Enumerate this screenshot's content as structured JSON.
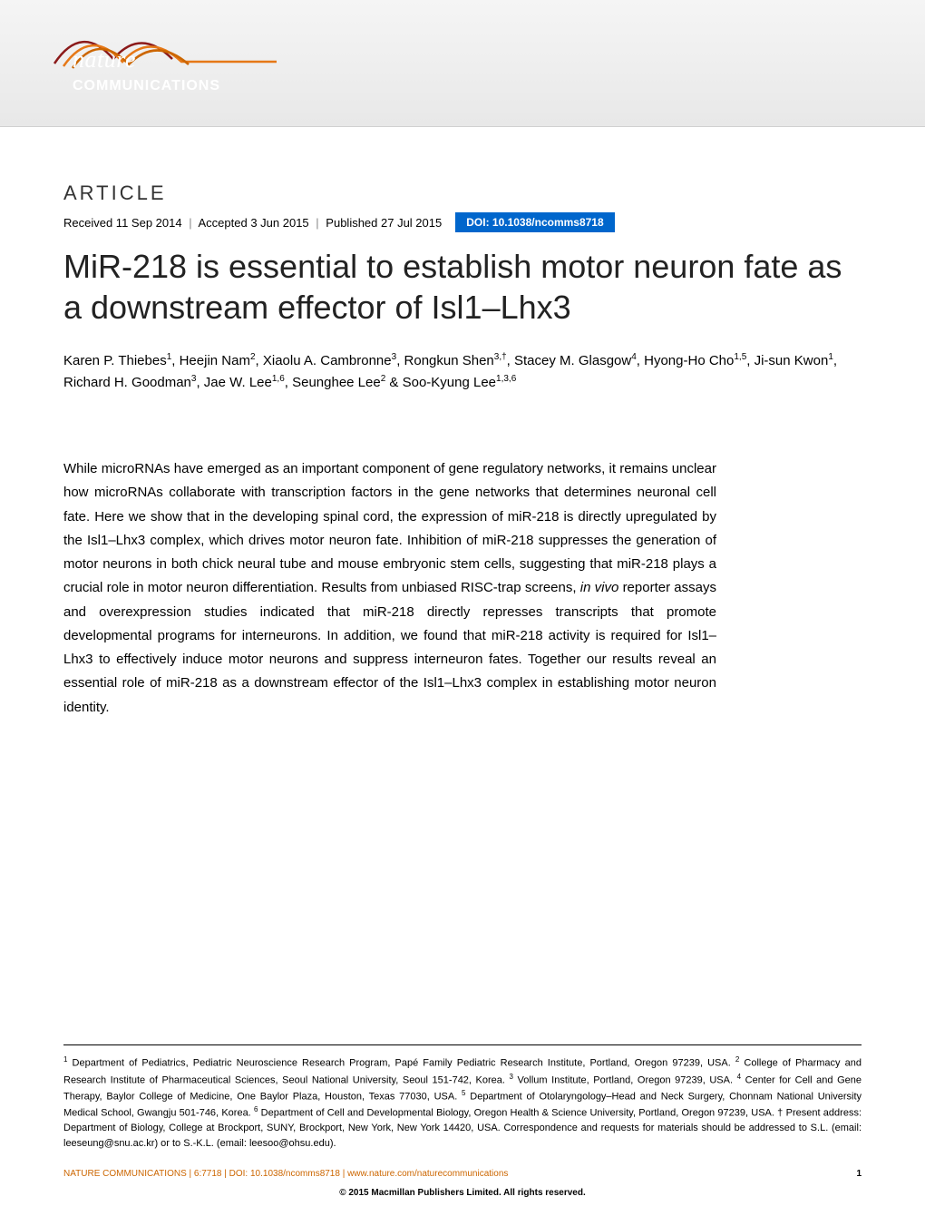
{
  "journal": {
    "logo_line1": "nature",
    "logo_line2": "COMMUNICATIONS",
    "logo_colors": {
      "swoosh1": "#8b1a1a",
      "swoosh2": "#e67817",
      "swoosh3": "#cc6600",
      "text": "#ffffff"
    },
    "banner_gradient": [
      "#f5f5f5",
      "#e8e8e8"
    ]
  },
  "article": {
    "label": "ARTICLE",
    "received": "Received 11 Sep 2014",
    "accepted": "Accepted 3 Jun 2015",
    "published": "Published 27 Jul 2015",
    "doi_label": "DOI: 10.1038/ncomms8718",
    "doi_bg": "#0066cc",
    "title": "MiR-218 is essential to establish motor neuron fate as a downstream effector of Isl1–Lhx3",
    "title_fontsize": 36,
    "authors_html": "Karen P. Thiebes<sup>1</sup>, Heejin Nam<sup>2</sup>, Xiaolu A. Cambronne<sup>3</sup>, Rongkun Shen<sup>3,†</sup>, Stacey M. Glasgow<sup>4</sup>, Hyong-Ho Cho<sup>1,5</sup>, Ji-sun Kwon<sup>1</sup>, Richard H. Goodman<sup>3</sup>, Jae W. Lee<sup>1,6</sup>, Seunghee Lee<sup>2</sup> & Soo-Kyung Lee<sup>1,3,6</sup>",
    "abstract": "While microRNAs have emerged as an important component of gene regulatory networks, it remains unclear how microRNAs collaborate with transcription factors in the gene networks that determines neuronal cell fate. Here we show that in the developing spinal cord, the expression of miR-218 is directly upregulated by the Isl1–Lhx3 complex, which drives motor neuron fate. Inhibition of miR-218 suppresses the generation of motor neurons in both chick neural tube and mouse embryonic stem cells, suggesting that miR-218 plays a crucial role in motor neuron differentiation. Results from unbiased RISC-trap screens, <span class=\"italic\">in vivo</span> reporter assays and overexpression studies indicated that miR-218 directly represses transcripts that promote developmental programs for interneurons. In addition, we found that miR-218 activity is required for Isl1–Lhx3 to effectively induce motor neurons and suppress interneuron fates. Together our results reveal an essential role of miR-218 as a downstream effector of the Isl1–Lhx3 complex in establishing motor neuron identity."
  },
  "affiliations": "<sup>1</sup> Department of Pediatrics, Pediatric Neuroscience Research Program, Papé Family Pediatric Research Institute, Portland, Oregon 97239, USA. <sup>2</sup> College of Pharmacy and Research Institute of Pharmaceutical Sciences, Seoul National University, Seoul 151-742, Korea. <sup>3</sup> Vollum Institute, Portland, Oregon 97239, USA. <sup>4</sup> Center for Cell and Gene Therapy, Baylor College of Medicine, One Baylor Plaza, Houston, Texas 77030, USA. <sup>5</sup> Department of Otolaryngology–Head and Neck Surgery, Chonnam National University Medical School, Gwangju 501-746, Korea. <sup>6</sup> Department of Cell and Developmental Biology, Oregon Health & Science University, Portland, Oregon 97239, USA. † Present address: Department of Biology, College at Brockport, SUNY, Brockport, New York, New York 14420, USA. Correspondence and requests for materials should be addressed to S.L. (email: leeseung@snu.ac.kr) or to S.-K.L. (email: leesoo@ohsu.edu).",
  "footer": {
    "citation_journal": "NATURE COMMUNICATIONS",
    "citation_rest": " | 6:7718 | DOI: 10.1038/ncomms8718 | www.nature.com/naturecommunications",
    "page": "1",
    "copyright": "© 2015 Macmillan Publishers Limited. All rights reserved."
  },
  "colors": {
    "text": "#000000",
    "accent": "#cc6600",
    "doi_bg": "#0066cc"
  }
}
